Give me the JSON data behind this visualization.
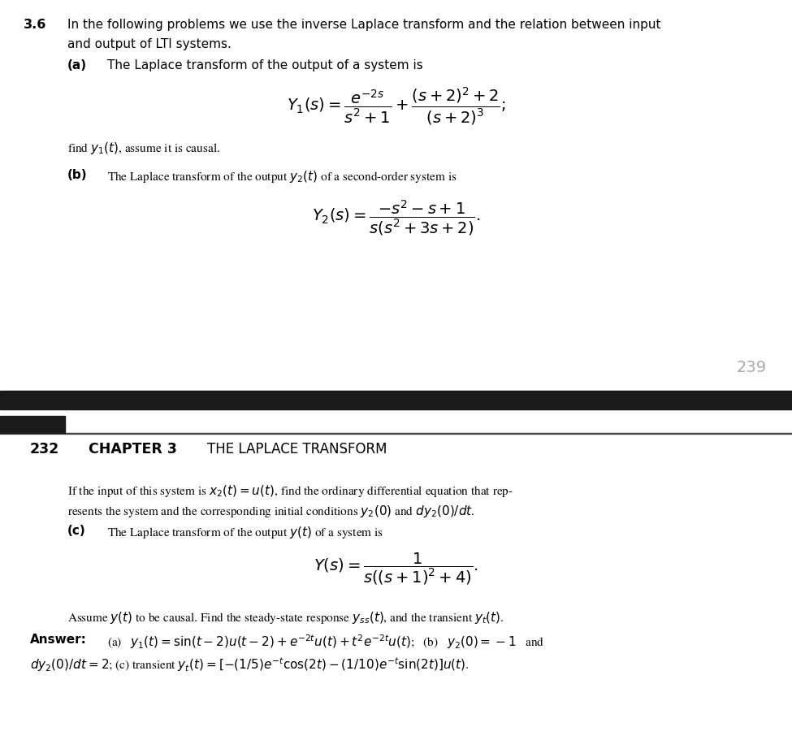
{
  "bg_color": "#ffffff",
  "page_number_top": "239",
  "page_number_color": "#aaaaaa",
  "header_bar_color": "#1a1a1a",
  "chapter_num": "232",
  "chapter_label": "CHAPTER 3",
  "chapter_title": "THE LAPLACE TRANSFORM",
  "problem_number": "3.6",
  "top_text_line1": "In the following problems we use the inverse Laplace transform and the relation between input",
  "top_text_line2": "and output of LTI systems.",
  "part_a_label": "(a)",
  "part_a_text": "The Laplace transform of the output of a system is",
  "eq_Y1": "$Y_1(s) = \\dfrac{e^{-2s}}{s^2+1} + \\dfrac{(s+2)^2+2}{(s+2)^3};$",
  "find_y1_text": "find $y_1(t)$, assume it is causal.",
  "part_b_label": "(b)",
  "part_b_text": "The Laplace transform of the output $y_2(t)$ of a second-order system is",
  "eq_Y2": "$Y_2(s) = \\dfrac{-s^2 - s + 1}{s(s^2+3s+2)}.$",
  "continue_text_line1": "If the input of this system is $x_2(t) = u(t)$, find the ordinary differential equation that rep-",
  "continue_text_line2": "resents the system and the corresponding initial conditions $y_2(0)$ and $dy_2(0)/dt$.",
  "part_c_label": "(c)",
  "part_c_text": "The Laplace transform of the output $y(t)$ of a system is",
  "eq_Y": "$Y(s) = \\dfrac{1}{s((s+1)^2+4)}.$",
  "assume_text": "Assume $y(t)$ to be causal. Find the steady-state response $y_{ss}(t)$, and the transient $y_t(t)$.",
  "answer_bold": "Answer:",
  "answer_line1": "(a)   $y_1(t) = \\sin(t-2)u(t-2) + e^{-2t}u(t) + t^2e^{-2t}u(t)$;   (b)   $y_2(0) = -1$   and",
  "answer_line2": "$dy_2(0)/dt = 2$; (c) transient $y_t(t) = [-(1/5)e^{-t}\\cos(2t) - (1/10)e^{-t}\\sin(2t)]u(t)$."
}
